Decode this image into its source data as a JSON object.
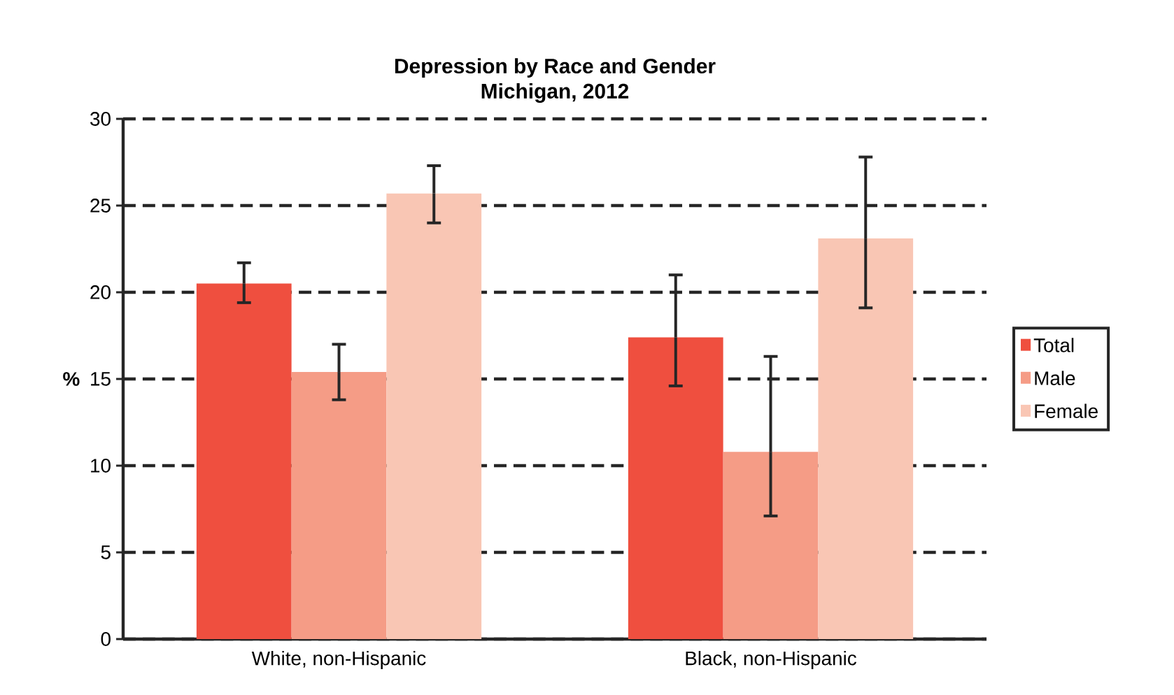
{
  "chart_data": {
    "type": "bar",
    "title": "Depression by Race and Gender\nMichigan, 2012",
    "ylabel": "%",
    "categories": [
      "White, non-Hispanic",
      "Black, non-Hispanic"
    ],
    "series": [
      {
        "name": "Total",
        "color": "#ef4f3f",
        "values": [
          20.5,
          17.4
        ],
        "errors": [
          [
            19.4,
            21.7
          ],
          [
            14.6,
            21.0
          ]
        ]
      },
      {
        "name": "Male",
        "color": "#f59c86",
        "values": [
          15.4,
          10.8
        ],
        "errors": [
          [
            13.8,
            17.0
          ],
          [
            7.1,
            16.3
          ]
        ]
      },
      {
        "name": "Female",
        "color": "#f9c6b4",
        "values": [
          25.7,
          23.1
        ],
        "errors": [
          [
            24.0,
            27.3
          ],
          [
            19.1,
            27.8
          ]
        ]
      }
    ],
    "ylim": [
      0,
      30
    ],
    "yticks": [
      0,
      5,
      10,
      15,
      20,
      25,
      30
    ],
    "grid": "y",
    "legend": "right"
  }
}
